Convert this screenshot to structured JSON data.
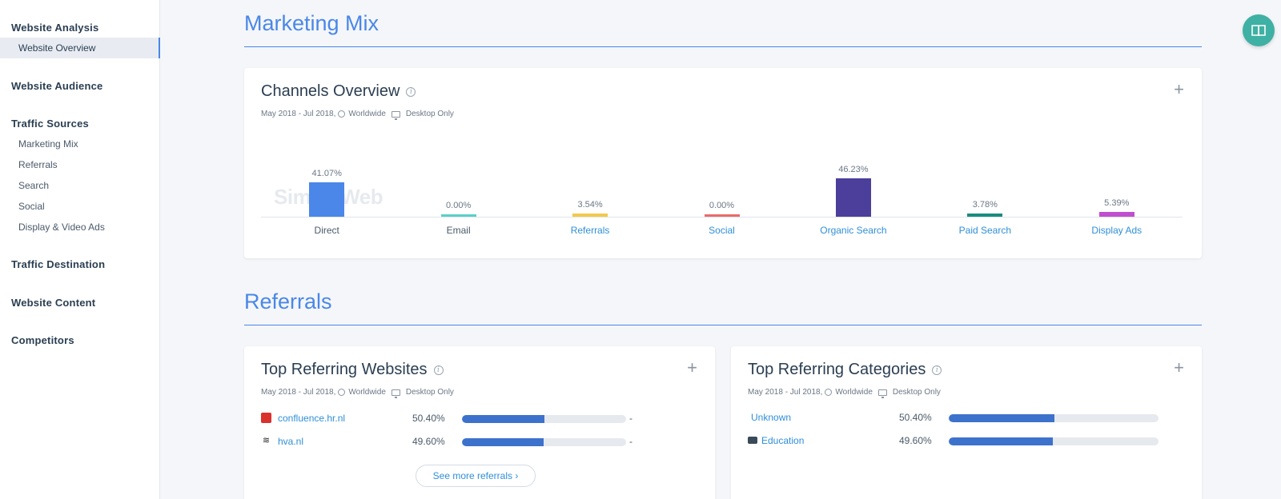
{
  "sidebar": {
    "groups": [
      {
        "label": "Website Analysis",
        "items": [
          {
            "label": "Website Overview",
            "active": true
          }
        ]
      },
      {
        "label": "Website Audience",
        "items": []
      },
      {
        "label": "Traffic Sources",
        "items": [
          {
            "label": "Marketing Mix"
          },
          {
            "label": "Referrals"
          },
          {
            "label": "Search"
          },
          {
            "label": "Social"
          },
          {
            "label": "Display & Video Ads"
          }
        ]
      },
      {
        "label": "Traffic Destination",
        "items": []
      },
      {
        "label": "Website Content",
        "items": []
      },
      {
        "label": "Competitors",
        "items": []
      }
    ]
  },
  "sections": {
    "marketing_mix_title": "Marketing Mix",
    "referrals_title": "Referrals"
  },
  "channels_card": {
    "title": "Channels Overview",
    "date_range": "May 2018 - Jul 2018,",
    "region": "Worldwide",
    "device": "Desktop Only",
    "watermark": "SimilarWeb"
  },
  "chart_data": {
    "type": "bar",
    "categories": [
      "Direct",
      "Email",
      "Referrals",
      "Social",
      "Organic Search",
      "Paid Search",
      "Display Ads"
    ],
    "values": [
      41.07,
      0.0,
      3.54,
      0.0,
      46.23,
      3.78,
      5.39
    ],
    "labels": [
      "41.07%",
      "0.00%",
      "3.54%",
      "0.00%",
      "46.23%",
      "3.78%",
      "5.39%"
    ],
    "colors": [
      "#4a87e8",
      "#5bd0c8",
      "#f2c94c",
      "#eb6a6a",
      "#4b3f9b",
      "#1a8c7e",
      "#c04fd0"
    ],
    "category_link": [
      false,
      false,
      true,
      true,
      true,
      true,
      true
    ],
    "ylim": [
      0,
      46.23
    ]
  },
  "top_websites_card": {
    "title": "Top Referring Websites",
    "date_range": "May 2018 - Jul 2018,",
    "region": "Worldwide",
    "device": "Desktop Only",
    "rows": [
      {
        "site": "confluence.hr.nl",
        "pct_label": "50.40%",
        "pct": 50.4,
        "change": "-",
        "icon": "hr-logo-icon"
      },
      {
        "site": "hva.nl",
        "pct_label": "49.60%",
        "pct": 49.6,
        "change": "-",
        "icon": "hva-logo-icon"
      }
    ],
    "see_more": "See more referrals"
  },
  "top_categories_card": {
    "title": "Top Referring Categories",
    "date_range": "May 2018 - Jul 2018,",
    "region": "Worldwide",
    "device": "Desktop Only",
    "rows": [
      {
        "category": "Unknown",
        "pct_label": "50.40%",
        "pct": 50.4,
        "icon": ""
      },
      {
        "category": "Education",
        "pct_label": "49.60%",
        "pct": 49.6,
        "icon": "briefcase-icon"
      }
    ]
  },
  "colors": {
    "accent": "#4a87e8",
    "link": "#2f8fd8",
    "fab": "#3fb0a4"
  }
}
